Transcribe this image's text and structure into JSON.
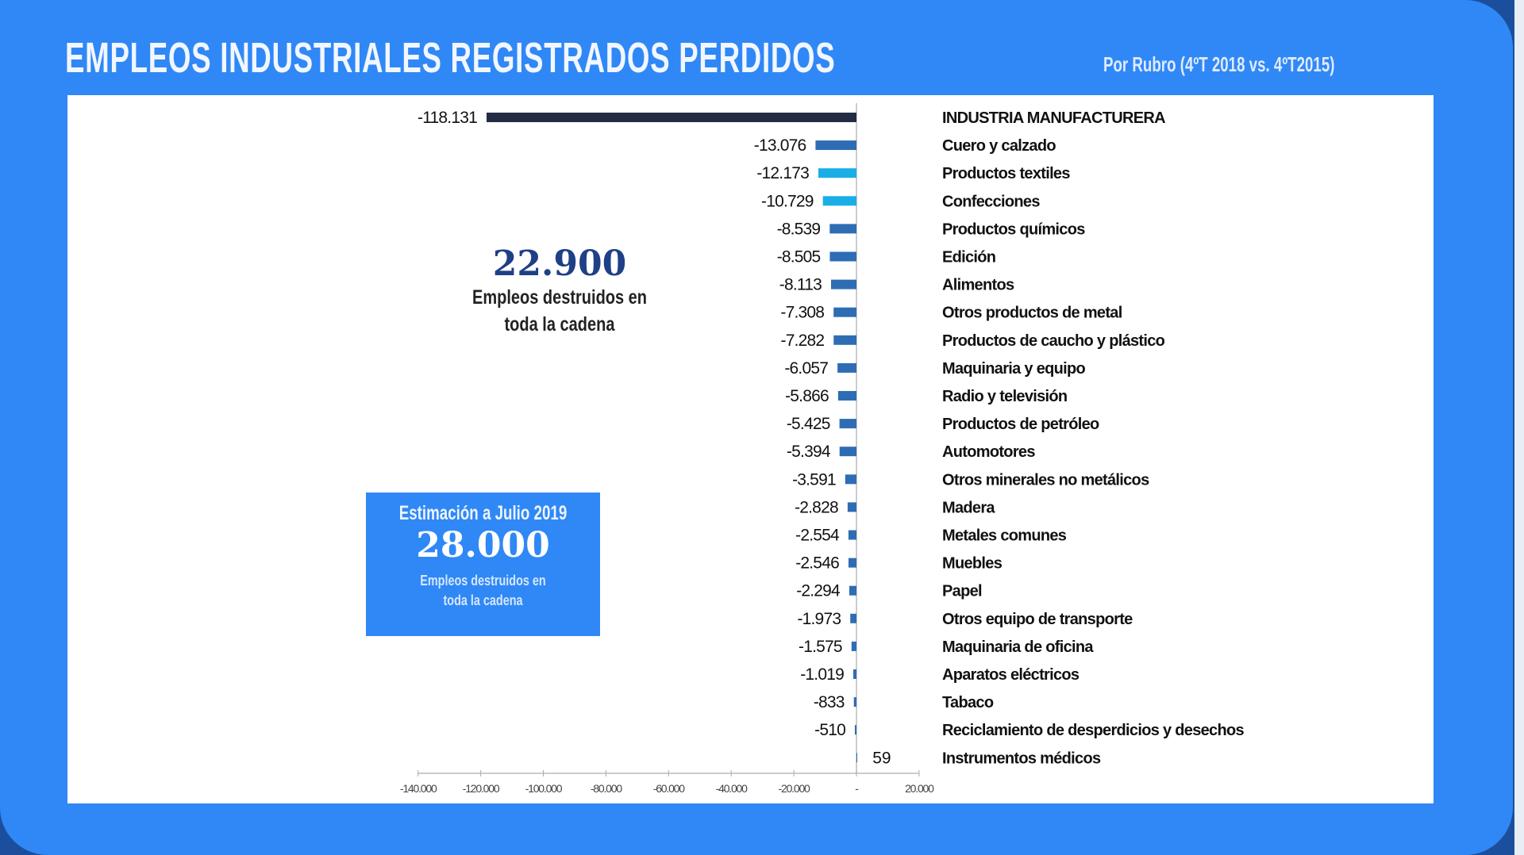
{
  "header": {
    "title": "EMPLEOS INDUSTRIALES REGISTRADOS PERDIDOS",
    "subtitle": "Por Rubro (4ºT 2018 vs. 4ºT2015)"
  },
  "stat": {
    "value": "22.900",
    "line1": "Empleos destruidos en",
    "line2": "toda la cadena"
  },
  "estimate": {
    "heading": "Estimación a Julio 2019",
    "value": "28.000",
    "line1": "Empleos destruidos en",
    "line2": "toda la cadena"
  },
  "colors": {
    "dark": "#232c44",
    "mid": "#2e6db4",
    "light": "#19aee6"
  },
  "chart_data": {
    "type": "bar",
    "orientation": "horizontal",
    "title": "EMPLEOS INDUSTRIALES REGISTRADOS PERDIDOS",
    "xlim": [
      -140000,
      20000
    ],
    "xticks": [
      -140000,
      -120000,
      -100000,
      -80000,
      -60000,
      -40000,
      -20000,
      0,
      20000
    ],
    "xtick_labels": [
      "-140.000",
      "-120.000",
      "-100.000",
      "-80.000",
      "-60.000",
      "-40.000",
      "-20.000",
      "-",
      "20.000"
    ],
    "categories": [
      "INDUSTRIA MANUFACTURERA",
      "Cuero y calzado",
      "Productos textiles",
      "Confecciones",
      "Productos químicos",
      "Edición",
      "Alimentos",
      "Otros productos de metal",
      "Productos de caucho y plástico",
      "Maquinaria y equipo",
      "Radio y televisión",
      "Productos de petróleo",
      "Automotores",
      "Otros minerales no metálicos",
      "Madera",
      "Metales comunes",
      "Muebles",
      "Papel",
      "Otros equipo de transporte",
      "Maquinaria de oficina",
      "Aparatos eléctricos",
      "Tabaco",
      "Reciclamiento de desperdicios y desechos",
      "Instrumentos médicos"
    ],
    "values": [
      -118131,
      -13076,
      -12173,
      -10729,
      -8539,
      -8505,
      -8113,
      -7308,
      -7282,
      -6057,
      -5866,
      -5425,
      -5394,
      -3591,
      -2828,
      -2554,
      -2546,
      -2294,
      -1973,
      -1575,
      -1019,
      -833,
      -510,
      59
    ],
    "value_labels": [
      "-118.131",
      "-13.076",
      "-12.173",
      "-10.729",
      "-8.539",
      "-8.505",
      "-8.113",
      "-7.308",
      "-7.282",
      "-6.057",
      "-5.866",
      "-5.425",
      "-5.394",
      "-3.591",
      "-2.828",
      "-2.554",
      "-2.546",
      "-2.294",
      "-1.973",
      "-1.575",
      "-1.019",
      "-833",
      "-510",
      "59"
    ],
    "bar_color_keys": [
      "dark",
      "mid",
      "light",
      "light",
      "mid",
      "mid",
      "mid",
      "mid",
      "mid",
      "mid",
      "mid",
      "mid",
      "mid",
      "mid",
      "mid",
      "mid",
      "mid",
      "mid",
      "mid",
      "mid",
      "mid",
      "mid",
      "mid",
      "mid"
    ]
  }
}
